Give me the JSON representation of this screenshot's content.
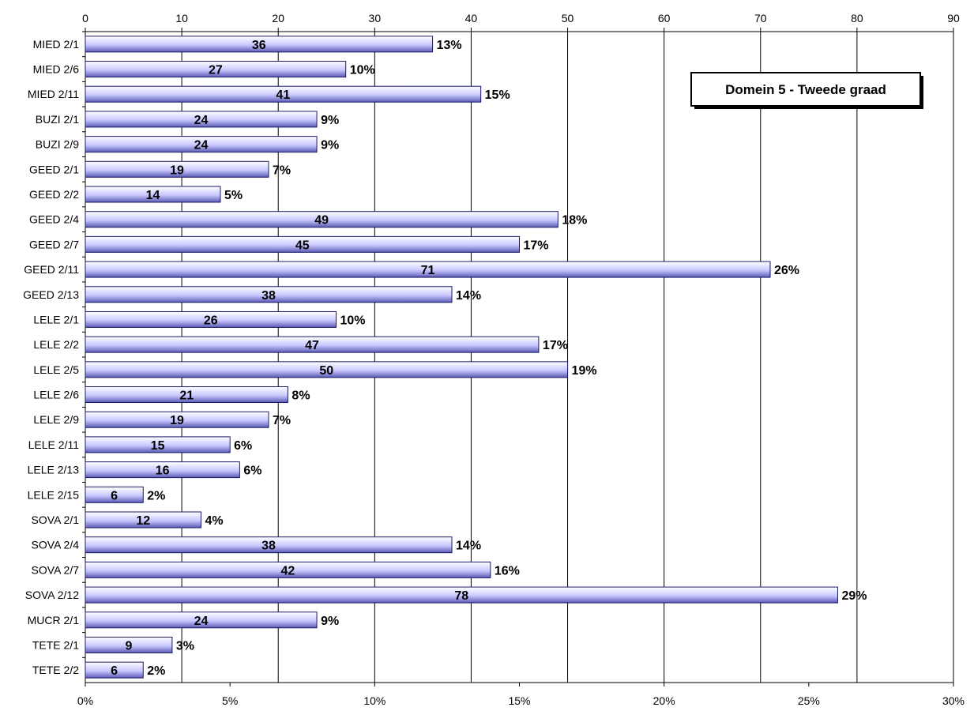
{
  "chart_data": {
    "type": "bar",
    "orientation": "horizontal",
    "title": "Domein 5 - Tweede graad",
    "legend": "none",
    "grid": true,
    "bar_color": "#c8c8ff",
    "bar_border_color": "#1a1a66",
    "categories": [
      "MIED 2/1",
      "MIED 2/6",
      "MIED 2/11",
      "BUZI 2/1",
      "BUZI 2/9",
      "GEED 2/1",
      "GEED 2/2",
      "GEED 2/4",
      "GEED 2/7",
      "GEED 2/11",
      "GEED 2/13",
      "LELE 2/1",
      "LELE 2/2",
      "LELE 2/5",
      "LELE 2/6",
      "LELE 2/9",
      "LELE 2/11",
      "LELE 2/13",
      "LELE 2/15",
      "SOVA 2/1",
      "SOVA 2/4",
      "SOVA 2/7",
      "SOVA 2/12",
      "MUCR 2/1",
      "TETE 2/1",
      "TETE 2/2"
    ],
    "values": [
      36,
      27,
      41,
      24,
      24,
      19,
      14,
      49,
      45,
      71,
      38,
      26,
      47,
      50,
      21,
      19,
      15,
      16,
      6,
      12,
      38,
      42,
      78,
      24,
      9,
      6
    ],
    "percent_labels": [
      "13%",
      "10%",
      "15%",
      "9%",
      "9%",
      "7%",
      "5%",
      "18%",
      "17%",
      "26%",
      "14%",
      "10%",
      "17%",
      "19%",
      "8%",
      "7%",
      "6%",
      "6%",
      "2%",
      "4%",
      "14%",
      "16%",
      "29%",
      "9%",
      "3%",
      "2%"
    ],
    "x_top_axis": {
      "min": 0,
      "max": 90,
      "ticks": [
        "0",
        "10",
        "20",
        "30",
        "40",
        "50",
        "60",
        "70",
        "80",
        "90"
      ]
    },
    "x_bottom_axis": {
      "min": 0,
      "max": 30,
      "unit": "%",
      "ticks": [
        "0%",
        "5%",
        "10%",
        "15%",
        "20%",
        "25%",
        "30%"
      ]
    }
  }
}
